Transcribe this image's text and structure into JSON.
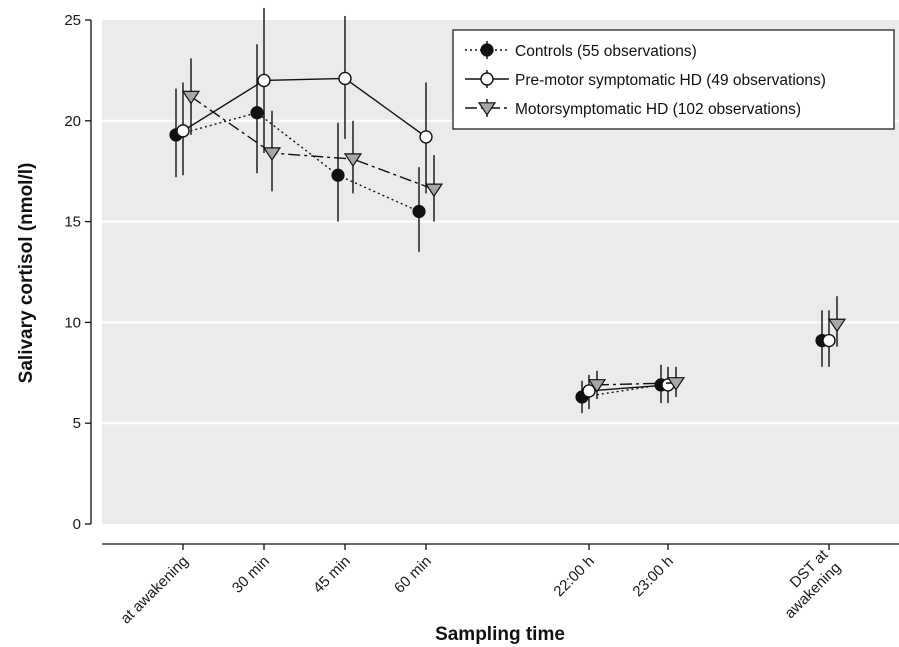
{
  "colors": {
    "plot_background": "#ebebeb",
    "grid": "#ffffff",
    "controls_marker": "#111111",
    "premotor_marker": "#ffffff",
    "motor_marker": "#a6a6a6",
    "line": "#111111"
  },
  "chart_data": {
    "type": "line",
    "xlabel": "Sampling time",
    "ylabel": "Salivary cortisol (nmol/l)",
    "ylim": [
      0,
      25
    ],
    "yticks": [
      0,
      5,
      10,
      15,
      20,
      25
    ],
    "grid": true,
    "legend_position": "top-right",
    "categories": [
      "at awakening",
      "30 min",
      "45 min",
      "60 min",
      "22:00 h",
      "23:00 h",
      "DST at awakening"
    ],
    "category_lines": [
      [
        "at awakening"
      ],
      [
        "30 min"
      ],
      [
        "45 min"
      ],
      [
        "60 min"
      ],
      [
        "22:00 h"
      ],
      [
        "23:00 h"
      ],
      [
        "DST at",
        "awakening"
      ]
    ],
    "series": [
      {
        "name": "Controls (55 observations)",
        "marker": "filled-circle",
        "line_style": "dotted",
        "values": [
          19.3,
          20.4,
          17.3,
          15.5,
          6.3,
          6.9,
          9.1
        ],
        "error_low": [
          17.2,
          17.4,
          15.0,
          13.5,
          5.5,
          6.0,
          7.8
        ],
        "error_high": [
          21.6,
          23.8,
          19.9,
          17.7,
          7.1,
          7.9,
          10.6
        ]
      },
      {
        "name": "Pre-motor symptomatic HD (49 observations)",
        "marker": "open-circle",
        "line_style": "solid",
        "values": [
          19.5,
          22.0,
          22.1,
          19.2,
          6.6,
          6.9,
          9.1
        ],
        "error_low": [
          17.3,
          18.4,
          19.1,
          16.4,
          5.7,
          6.0,
          7.8
        ],
        "error_high": [
          21.9,
          25.6,
          25.2,
          21.9,
          7.4,
          7.8,
          10.6
        ]
      },
      {
        "name": "Motorsymptomatic HD (102 observations)",
        "marker": "down-triangle",
        "line_style": "dashdot",
        "values": [
          21.2,
          18.4,
          18.1,
          16.6,
          6.9,
          7.0,
          9.9
        ],
        "error_low": [
          19.3,
          16.5,
          16.4,
          15.0,
          6.2,
          6.3,
          8.8
        ],
        "error_high": [
          23.1,
          20.5,
          20.0,
          18.3,
          7.6,
          7.8,
          11.3
        ]
      }
    ],
    "connected_segments": [
      [
        0,
        1,
        2,
        3
      ],
      [
        4,
        5
      ]
    ]
  }
}
